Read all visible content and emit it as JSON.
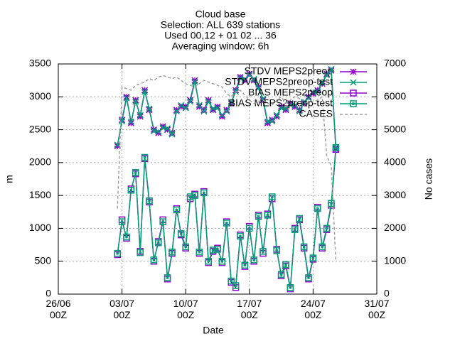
{
  "chart_data": {
    "type": "line",
    "title": [
      "Cloud base",
      "Selection: ALL    639 stations",
      "Used 00,12 + 01 02 ... 36",
      "Averaging window:  6h"
    ],
    "xlabel": "Date",
    "ylabel": "m",
    "y2label": "No cases",
    "grid": true,
    "legend": "top-right",
    "xlim": [
      "26/06 00Z",
      "31/07 00Z"
    ],
    "xticks": [
      {
        "value": "26/06 00Z",
        "label": "26/06\n00Z"
      },
      {
        "value": "03/07 00Z",
        "label": "03/07\n00Z"
      },
      {
        "value": "10/07 00Z",
        "label": "10/07\n00Z"
      },
      {
        "value": "17/07 00Z",
        "label": "17/07\n00Z"
      },
      {
        "value": "24/07 00Z",
        "label": "24/07\n00Z"
      },
      {
        "value": "31/07 00Z",
        "label": "31/07\n00Z"
      }
    ],
    "ylim": [
      0,
      3500
    ],
    "yticks": [
      0,
      500,
      1000,
      1500,
      2000,
      2500,
      3000,
      3500
    ],
    "y2lim": [
      0,
      7000
    ],
    "y2ticks": [
      0,
      1000,
      2000,
      3000,
      4000,
      5000,
      6000,
      7000
    ],
    "x": [
      "02/07 12Z",
      "03/07 00Z",
      "03/07 12Z",
      "04/07 00Z",
      "04/07 12Z",
      "05/07 00Z",
      "05/07 12Z",
      "06/07 00Z",
      "06/07 12Z",
      "07/07 00Z",
      "07/07 12Z",
      "08/07 00Z",
      "08/07 12Z",
      "09/07 00Z",
      "09/07 12Z",
      "10/07 00Z",
      "10/07 12Z",
      "11/07 00Z",
      "11/07 12Z",
      "12/07 00Z",
      "12/07 12Z",
      "13/07 00Z",
      "13/07 12Z",
      "14/07 00Z",
      "14/07 12Z",
      "15/07 00Z",
      "15/07 12Z",
      "16/07 00Z",
      "16/07 12Z",
      "17/07 00Z",
      "17/07 12Z",
      "18/07 00Z",
      "18/07 12Z",
      "19/07 00Z",
      "19/07 12Z",
      "20/07 00Z",
      "20/07 12Z",
      "21/07 00Z",
      "21/07 12Z",
      "22/07 00Z",
      "22/07 12Z",
      "23/07 00Z",
      "23/07 12Z",
      "24/07 00Z",
      "24/07 12Z",
      "25/07 00Z",
      "25/07 12Z",
      "26/07 00Z",
      "26/07 12Z"
    ],
    "series": [
      {
        "name": "STDV MEPS2preop",
        "color": "#9400d3",
        "marker": "star",
        "axis": "y",
        "values": [
          2250,
          2650,
          3000,
          2600,
          2950,
          2700,
          3100,
          2800,
          2500,
          2450,
          2550,
          2500,
          2450,
          2800,
          2850,
          2850,
          2950,
          3250,
          2850,
          2800,
          2950,
          2800,
          2850,
          2700,
          2800,
          2900,
          3100,
          3300,
          3250,
          3350,
          3250,
          3150,
          2950,
          2600,
          2650,
          2700,
          2850,
          2800,
          2900,
          2850,
          2800,
          2900,
          3000,
          3050,
          3100,
          3200,
          3350,
          3400,
          2200
        ]
      },
      {
        "name": "STDV MEPS2preop-test",
        "color": "#009e73",
        "marker": "cross",
        "axis": "y",
        "values": [
          2270,
          2630,
          2980,
          2620,
          2930,
          2720,
          3080,
          2820,
          2480,
          2470,
          2530,
          2520,
          2430,
          2780,
          2870,
          2830,
          2930,
          3230,
          2870,
          2780,
          2930,
          2820,
          2830,
          2720,
          2780,
          2920,
          3080,
          3280,
          3270,
          3330,
          3270,
          3130,
          2970,
          2620,
          2630,
          2720,
          2830,
          2820,
          2880,
          2870,
          2780,
          2920,
          2980,
          3070,
          3080,
          3220,
          3330,
          3420,
          2230
        ]
      },
      {
        "name": "BIAS MEPS2preop",
        "color": "#9400d3",
        "marker": "square",
        "axis": "y",
        "values": [
          600,
          1130,
          850,
          1600,
          1830,
          650,
          2060,
          1400,
          500,
          800,
          1130,
          230,
          620,
          1300,
          900,
          700,
          1450,
          1520,
          620,
          1560,
          480,
          650,
          700,
          480,
          1100,
          180,
          100,
          900,
          420,
          1030,
          500,
          1200,
          620,
          1220,
          1450,
          680,
          280,
          430,
          80,
          1000,
          1130,
          700,
          230,
          530,
          1320,
          700,
          980,
          1350,
          2200
        ]
      },
      {
        "name": "BIAS MEPS2preop-test",
        "color": "#009e73",
        "marker": "square-dot",
        "axis": "y",
        "values": [
          620,
          1100,
          870,
          1580,
          1850,
          630,
          2080,
          1420,
          520,
          780,
          1100,
          250,
          640,
          1280,
          920,
          720,
          1480,
          1500,
          640,
          1540,
          500,
          670,
          680,
          500,
          1080,
          200,
          130,
          880,
          440,
          1000,
          520,
          1180,
          650,
          1200,
          1480,
          660,
          300,
          450,
          100,
          980,
          1150,
          720,
          250,
          550,
          1300,
          720,
          1000,
          1380,
          2230
        ]
      },
      {
        "name": "CASES",
        "color": "#a0a0a0",
        "marker": "none",
        "dash": true,
        "axis": "y2",
        "values": [
          2600,
          6300,
          6250,
          6200,
          6350,
          6400,
          6450,
          6550,
          6500,
          6600,
          6650,
          6600,
          6550,
          6600,
          6500,
          6400,
          6350,
          6300,
          6400,
          6500,
          6450,
          6400,
          6350,
          6300,
          6100,
          6000,
          6150,
          6200,
          6050,
          5900,
          5800,
          5850,
          5900,
          5800,
          5750,
          5900,
          6000,
          5800,
          5900,
          6000,
          5950,
          5900,
          5800,
          5850,
          5900,
          6000,
          4200,
          3900,
          1000
        ]
      }
    ]
  }
}
